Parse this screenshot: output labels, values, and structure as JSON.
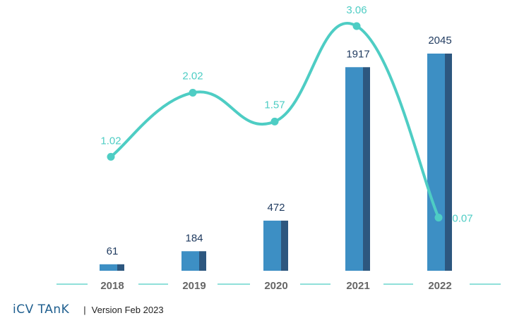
{
  "chart_data": {
    "type": "bar+line",
    "categories": [
      "2018",
      "2019",
      "2020",
      "2021",
      "2022"
    ],
    "bar_series": {
      "name": "Bars",
      "values": [
        61,
        184,
        472,
        1917,
        2045
      ],
      "value_labels": [
        "61",
        "184",
        "472",
        "1917",
        "2045"
      ]
    },
    "line_series": {
      "name": "Line",
      "values": [
        1.02,
        2.02,
        1.57,
        3.06,
        0.07
      ],
      "value_labels": [
        "1.02",
        "2.02",
        "1.57",
        "3.06",
        "0.07"
      ]
    },
    "bar_ylim": [
      0,
      2045
    ],
    "line_ylim": [
      0,
      3.06
    ],
    "colors": {
      "bar_face": "#3d8fc4",
      "bar_side": "#2d577f",
      "line": "#4ecdc4",
      "bar_label": "#1f3a5f",
      "line_label": "#4ecdc4",
      "tick_label": "#666666",
      "axis_segment": "#4ecdc4"
    }
  },
  "footer": {
    "logo": "iCV TAnK",
    "separator": "|",
    "version": "Version Feb 2023"
  }
}
